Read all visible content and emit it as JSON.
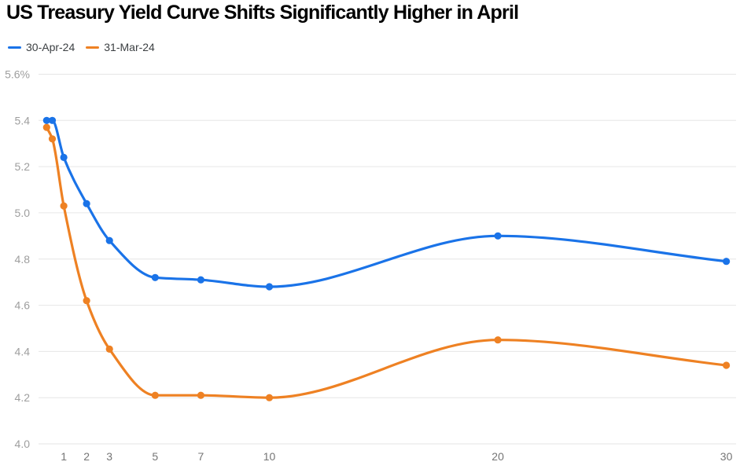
{
  "title": "US Treasury Yield Curve Shifts Significantly Higher in April",
  "chart_data": {
    "type": "line",
    "title": "US Treasury Yield Curve Shifts Significantly Higher in April",
    "xlabel": "",
    "ylabel": "",
    "x": [
      0.25,
      0.5,
      1,
      2,
      3,
      5,
      7,
      10,
      20,
      30
    ],
    "series": [
      {
        "name": "30-Apr-24",
        "color": "#1a73e8",
        "values": [
          5.4,
          5.4,
          5.24,
          5.04,
          4.88,
          4.72,
          4.71,
          4.68,
          4.9,
          4.79
        ]
      },
      {
        "name": "31-Mar-24",
        "color": "#ee8123",
        "values": [
          5.37,
          5.32,
          5.03,
          4.62,
          4.41,
          4.21,
          4.21,
          4.2,
          4.45,
          4.34
        ]
      }
    ],
    "xlim": [
      0,
      30
    ],
    "ylim": [
      4.0,
      5.6
    ],
    "x_ticks": [
      1,
      2,
      3,
      5,
      7,
      10,
      20,
      30
    ],
    "x_tick_labels": [
      "1",
      "2",
      "3",
      "5",
      "7",
      "10",
      "20",
      "30"
    ],
    "y_ticks": [
      5.6,
      5.4,
      5.2,
      5.0,
      4.8,
      4.6,
      4.4,
      4.2,
      4.0
    ],
    "y_tick_labels": [
      "5.6%",
      "5.4",
      "5.2",
      "5.0",
      "4.8",
      "4.6",
      "4.4",
      "4.2",
      "4.0"
    ],
    "grid": true,
    "markers": true,
    "curve": "smooth",
    "legend_position": "top-left"
  },
  "styles": {
    "background": "#ffffff",
    "grid_color": "#e6e6e6",
    "y_label_color": "#9e9e9e",
    "x_label_color": "#757575",
    "title_color": "#000000",
    "legend_text_color": "#3c4043"
  }
}
